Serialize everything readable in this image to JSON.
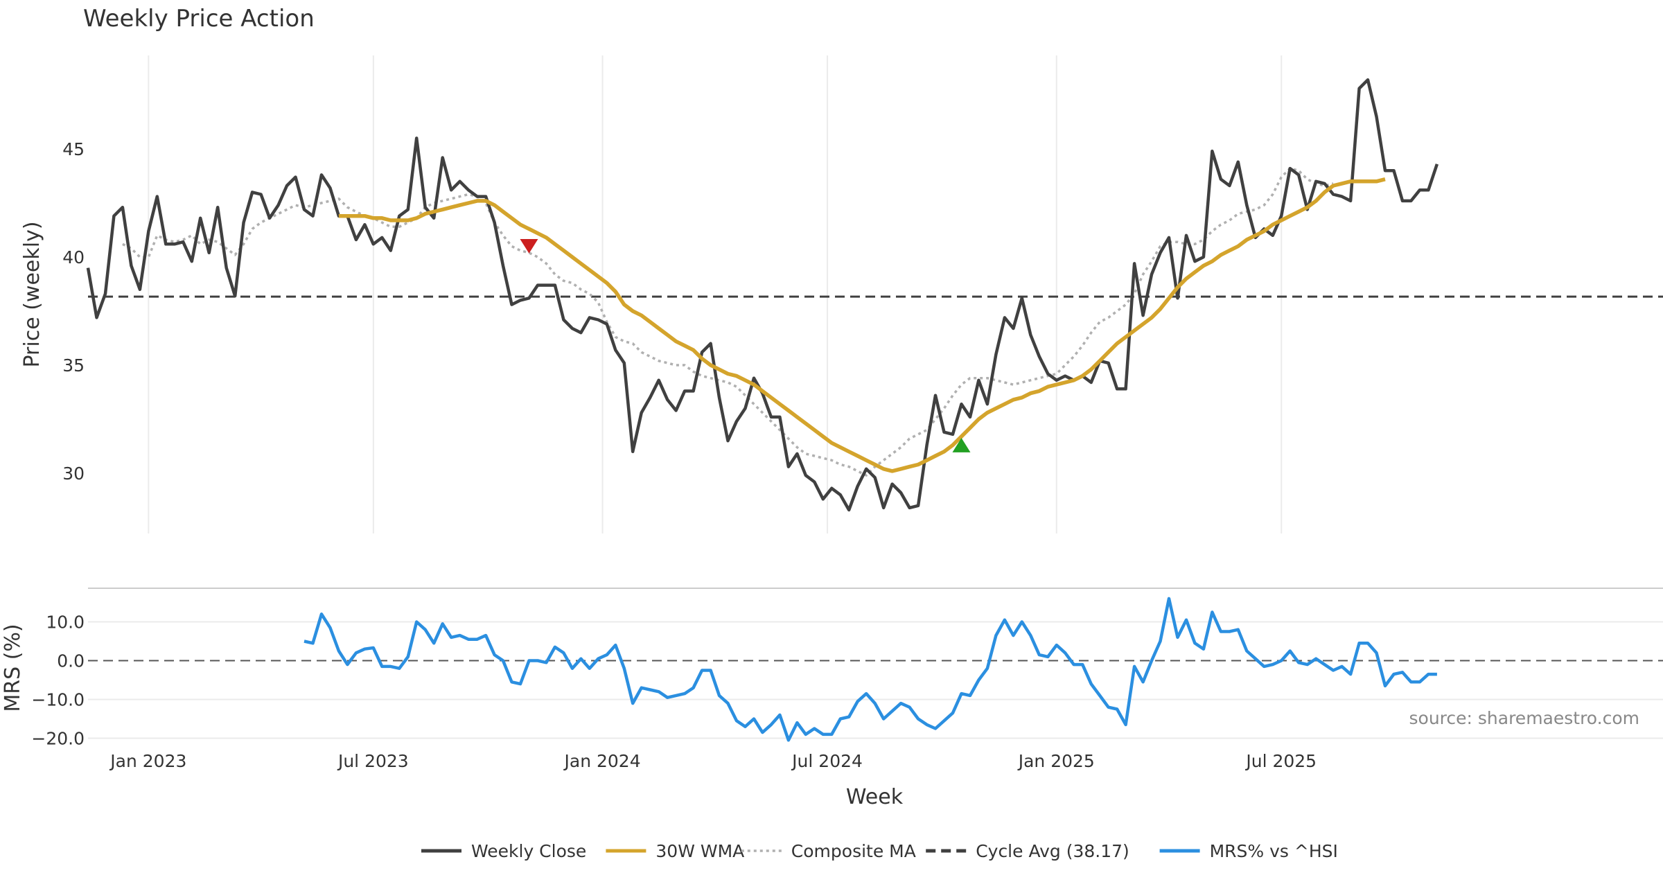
{
  "chart_data": [
    {
      "type": "line",
      "title": "Weekly Price Action",
      "ylabel": "Price (weekly)",
      "ylim": [
        26.8,
        49.6
      ],
      "yticks": [
        30,
        35,
        40,
        45
      ],
      "grid": true,
      "x_start_date": "2022-11-14",
      "x_interval": "weekly",
      "cycle_avg": 38.17,
      "series": [
        {
          "name": "Weekly Close",
          "color": "#404040",
          "style": "solid",
          "start_index": 0,
          "values": [
            39.5,
            37.2,
            38.3,
            41.9,
            42.3,
            39.6,
            38.5,
            41.2,
            42.8,
            40.6,
            40.6,
            40.7,
            39.8,
            41.8,
            40.2,
            42.3,
            39.5,
            38.2,
            41.6,
            43.0,
            42.9,
            41.8,
            42.4,
            43.3,
            43.7,
            42.2,
            41.9,
            43.8,
            43.2,
            41.9,
            41.9,
            40.8,
            41.5,
            40.6,
            40.9,
            40.3,
            41.9,
            42.2,
            45.5,
            42.3,
            41.8,
            44.6,
            43.1,
            43.5,
            43.1,
            42.8,
            42.8,
            41.6,
            39.6,
            37.8,
            38.0,
            38.1,
            38.7,
            38.7,
            38.7,
            37.1,
            36.7,
            36.5,
            37.2,
            37.1,
            36.9,
            35.7,
            35.1,
            31.0,
            32.8,
            33.5,
            34.3,
            33.4,
            32.9,
            33.8,
            33.8,
            35.6,
            36.0,
            33.5,
            31.5,
            32.4,
            33.0,
            34.4,
            33.7,
            32.6,
            32.6,
            30.3,
            30.9,
            29.9,
            29.6,
            28.8,
            29.3,
            29.0,
            28.3,
            29.4,
            30.2,
            29.8,
            28.4,
            29.5,
            29.1,
            28.4,
            28.5,
            31.3,
            33.6,
            31.9,
            31.8,
            33.2,
            32.6,
            34.3,
            33.2,
            35.5,
            37.2,
            36.7,
            38.1,
            36.4,
            35.4,
            34.6,
            34.3,
            34.5,
            34.3,
            34.5,
            34.2,
            35.2,
            35.1,
            33.9,
            33.9,
            39.7,
            37.3,
            39.2,
            40.2,
            40.9,
            38.1,
            41.0,
            39.8,
            40.0,
            44.9,
            43.6,
            43.3,
            44.4,
            42.4,
            40.9,
            41.3,
            41.0,
            41.9,
            44.1,
            43.8,
            42.2,
            43.5,
            43.4,
            42.9,
            42.8,
            42.6,
            47.8,
            48.2,
            46.5,
            44.0,
            44.0,
            42.6,
            42.6,
            43.1,
            43.1,
            44.3
          ]
        },
        {
          "name": "30W WMA",
          "color": "#d4a42c",
          "style": "solid",
          "start_index": 29,
          "values": [
            41.9,
            41.9,
            41.9,
            41.9,
            41.8,
            41.8,
            41.7,
            41.7,
            41.7,
            41.8,
            42.0,
            42.1,
            42.2,
            42.3,
            42.4,
            42.5,
            42.6,
            42.6,
            42.4,
            42.1,
            41.8,
            41.5,
            41.3,
            41.1,
            40.9,
            40.6,
            40.3,
            40.0,
            39.7,
            39.4,
            39.1,
            38.8,
            38.4,
            37.8,
            37.5,
            37.3,
            37.0,
            36.7,
            36.4,
            36.1,
            35.9,
            35.7,
            35.3,
            35.0,
            34.8,
            34.6,
            34.5,
            34.3,
            34.1,
            33.8,
            33.5,
            33.2,
            32.9,
            32.6,
            32.3,
            32.0,
            31.7,
            31.4,
            31.2,
            31.0,
            30.8,
            30.6,
            30.4,
            30.2,
            30.1,
            30.2,
            30.3,
            30.4,
            30.6,
            30.8,
            31.0,
            31.3,
            31.7,
            32.1,
            32.5,
            32.8,
            33.0,
            33.2,
            33.4,
            33.5,
            33.7,
            33.8,
            34.0,
            34.1,
            34.2,
            34.3,
            34.5,
            34.8,
            35.2,
            35.6,
            36.0,
            36.3,
            36.6,
            36.9,
            37.2,
            37.6,
            38.1,
            38.6,
            39.0,
            39.3,
            39.6,
            39.8,
            40.1,
            40.3,
            40.5,
            40.8,
            41.0,
            41.2,
            41.5,
            41.7,
            41.9,
            42.1,
            42.3,
            42.6,
            43.0,
            43.3,
            43.4,
            43.5,
            43.5,
            43.5,
            43.5,
            43.6
          ]
        },
        {
          "name": "Composite MA",
          "color": "#b0b0b0",
          "style": "dotted",
          "start_index": 4,
          "values": [
            40.6,
            40.4,
            40.0,
            40.0,
            41.0,
            40.8,
            40.7,
            40.8,
            41.0,
            40.6,
            40.8,
            40.7,
            40.4,
            40.1,
            40.6,
            41.3,
            41.6,
            41.8,
            42.0,
            42.2,
            42.4,
            42.3,
            42.4,
            42.5,
            42.6,
            42.7,
            42.3,
            42.1,
            41.9,
            41.8,
            41.6,
            41.4,
            41.4,
            41.6,
            41.8,
            42.3,
            42.5,
            42.6,
            42.7,
            42.8,
            42.9,
            42.8,
            42.5,
            41.6,
            41.0,
            40.5,
            40.3,
            40.2,
            40.0,
            39.7,
            39.2,
            38.9,
            38.8,
            38.5,
            38.3,
            37.9,
            37.0,
            36.3,
            36.1,
            36.0,
            35.6,
            35.4,
            35.2,
            35.1,
            35.0,
            35.0,
            34.7,
            34.5,
            34.4,
            34.3,
            34.2,
            34.0,
            33.6,
            33.2,
            32.8,
            32.4,
            32.0,
            31.6,
            31.2,
            30.9,
            30.8,
            30.7,
            30.6,
            30.4,
            30.3,
            30.1,
            29.9,
            30.3,
            30.6,
            30.9,
            31.2,
            31.6,
            31.8,
            32.0,
            32.5,
            33.0,
            33.6,
            34.1,
            34.4,
            34.4,
            34.4,
            34.3,
            34.2,
            34.1,
            34.2,
            34.3,
            34.4,
            34.5,
            34.6,
            35.0,
            35.4,
            35.9,
            36.5,
            37.0,
            37.2,
            37.5,
            37.8,
            38.3,
            39.2,
            39.8,
            40.5,
            40.7,
            40.7,
            40.6,
            40.6,
            40.8,
            41.2,
            41.5,
            41.7,
            42.0,
            42.1,
            42.2,
            42.4,
            42.9,
            43.7,
            44.1,
            44.0,
            43.6,
            43.4,
            43.3,
            43.4
          ]
        },
        {
          "name": "Cycle Avg (38.17)",
          "color": "#404040",
          "style": "dashed",
          "constant": 38.17
        }
      ],
      "markers": [
        {
          "type": "sell",
          "shape": "triangle-down",
          "color": "#cc1f1f",
          "index": 51,
          "value": 40.5
        },
        {
          "type": "buy",
          "shape": "triangle-up",
          "color": "#22a022",
          "index": 101,
          "value": 31.3
        }
      ]
    },
    {
      "type": "line",
      "ylabel": "MRS (%)",
      "xlabel": "Week",
      "ylim": [
        -21,
        17.5
      ],
      "yticks": [
        10.0,
        0.0,
        -10.0,
        -20.0
      ],
      "ytick_labels": [
        "10.0",
        "0.0",
        "−10.0",
        "−20.0"
      ],
      "grid": true,
      "xtick_labels": [
        "Jan 2023",
        "Jul 2023",
        "Jan 2024",
        "Jul 2024",
        "Jan 2025",
        "Jul 2025"
      ],
      "xtick_indexes": [
        7,
        33,
        59.5,
        85.5,
        112,
        138
      ],
      "zero_line": 0,
      "series": [
        {
          "name": "MRS% vs ^HSI",
          "color": "#2b8fe0",
          "style": "solid",
          "start_index": 25,
          "values": [
            5,
            4.5,
            12,
            8.5,
            2.5,
            -1,
            2,
            3,
            3.3,
            -1.5,
            -1.5,
            -2,
            1,
            10,
            8,
            4.5,
            9.5,
            6,
            6.5,
            5.5,
            5.5,
            6.5,
            1.5,
            0,
            -5.5,
            -6,
            0,
            0,
            -0.5,
            3.5,
            2,
            -2,
            0.5,
            -2,
            0.5,
            1.5,
            4,
            -2,
            -11,
            -7,
            -7.5,
            -8,
            -9.5,
            -9,
            -8.5,
            -7,
            -2.5,
            -2.5,
            -9,
            -11,
            -15.5,
            -17,
            -15,
            -18.5,
            -16.5,
            -14,
            -20.5,
            -16,
            -19,
            -17.5,
            -19,
            -19,
            -15,
            -14.5,
            -10.5,
            -8.5,
            -11,
            -15,
            -13,
            -11,
            -12,
            -15,
            -16.5,
            -17.5,
            -15.5,
            -13.5,
            -8.5,
            -9,
            -5,
            -2,
            6.5,
            10.5,
            6.5,
            10,
            6.5,
            1.5,
            1,
            4,
            2,
            -1,
            -1,
            -6,
            -9,
            -12,
            -12.5,
            -16.5,
            -1.5,
            -5.5,
            0,
            5,
            16,
            6,
            10.5,
            4.5,
            3,
            12.5,
            7.5,
            7.5,
            8,
            2.5,
            0.5,
            -1.5,
            -1,
            0,
            2.5,
            -0.5,
            -1,
            0.5,
            -1,
            -2.5,
            -1.5,
            -3.5,
            4.5,
            4.5,
            2,
            -6.5,
            -3.5,
            -3,
            -5.5,
            -5.5,
            -3.5,
            -3.5
          ]
        }
      ]
    }
  ],
  "legend": {
    "placement": "bottom-center",
    "items": [
      {
        "label": "Weekly Close",
        "color": "#404040",
        "style": "solid"
      },
      {
        "label": "30W WMA",
        "color": "#d4a42c",
        "style": "solid"
      },
      {
        "label": "Composite MA",
        "color": "#b0b0b0",
        "style": "dotted"
      },
      {
        "label": "Cycle Avg (38.17)",
        "color": "#404040",
        "style": "dashed"
      },
      {
        "label": "MRS% vs ^HSI",
        "color": "#2b8fe0",
        "style": "solid"
      }
    ]
  },
  "source_note": "source: sharemaestro.com"
}
